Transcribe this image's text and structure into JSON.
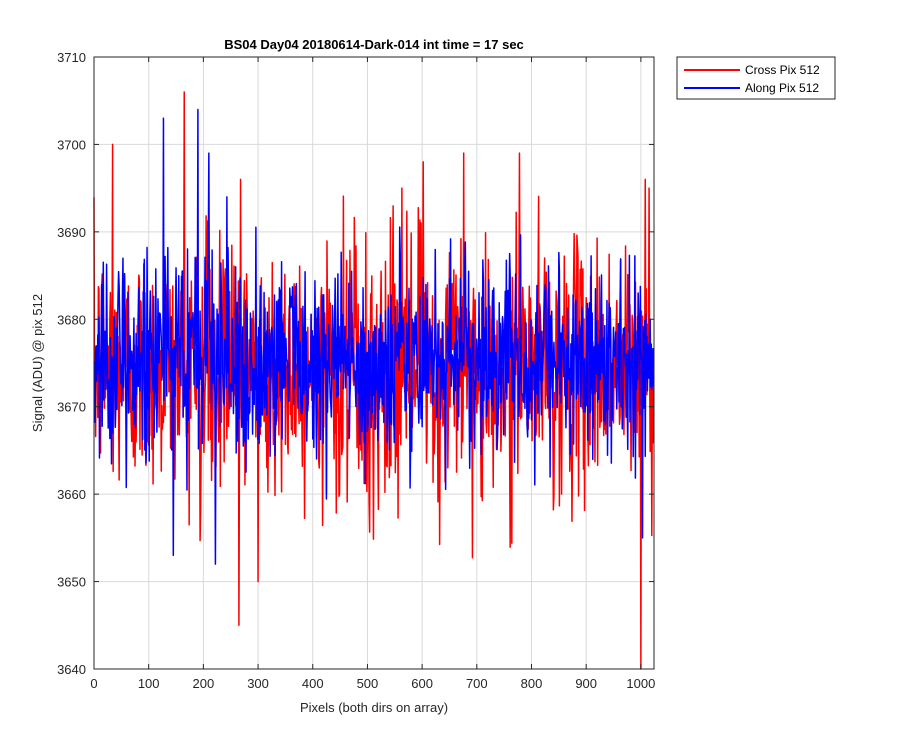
{
  "chart_data": {
    "type": "line",
    "title": "BS04 Day04 20180614-Dark-014 int time = 17 sec",
    "xlabel": "Pixels (both dirs on array)",
    "ylabel": "Signal (ADU) @ pix 512",
    "xlim": [
      0,
      1024
    ],
    "ylim": [
      3640,
      3710
    ],
    "xticks": [
      0,
      100,
      200,
      300,
      400,
      500,
      600,
      700,
      800,
      900,
      1000
    ],
    "yticks": [
      3640,
      3650,
      3660,
      3670,
      3680,
      3690,
      3700,
      3710
    ],
    "grid": true,
    "legend_position": "outside-top-right",
    "series": [
      {
        "name": "Cross Pix 512",
        "color": "#ff0000",
        "generation": "noise",
        "n_points": 1024,
        "mean": 3674.5,
        "spread": 7,
        "extremes": [
          {
            "x": 34,
            "y": 3700
          },
          {
            "x": 165,
            "y": 3706
          },
          {
            "x": 265,
            "y": 3645
          },
          {
            "x": 268,
            "y": 3696
          },
          {
            "x": 300,
            "y": 3650
          },
          {
            "x": 563,
            "y": 3695
          },
          {
            "x": 602,
            "y": 3698
          },
          {
            "x": 676,
            "y": 3699
          },
          {
            "x": 778,
            "y": 3699
          },
          {
            "x": 1000,
            "y": 3640
          },
          {
            "x": 1008,
            "y": 3696
          },
          {
            "x": 1015,
            "y": 3695
          }
        ]
      },
      {
        "name": "Along Pix 512",
        "color": "#0000ff",
        "generation": "noise",
        "n_points": 1024,
        "mean": 3675,
        "spread": 5.5,
        "extremes": [
          {
            "x": 127,
            "y": 3703
          },
          {
            "x": 190,
            "y": 3704
          },
          {
            "x": 210,
            "y": 3699
          },
          {
            "x": 243,
            "y": 3694
          },
          {
            "x": 145,
            "y": 3653
          },
          {
            "x": 222,
            "y": 3652
          },
          {
            "x": 1003,
            "y": 3655
          }
        ]
      }
    ]
  }
}
